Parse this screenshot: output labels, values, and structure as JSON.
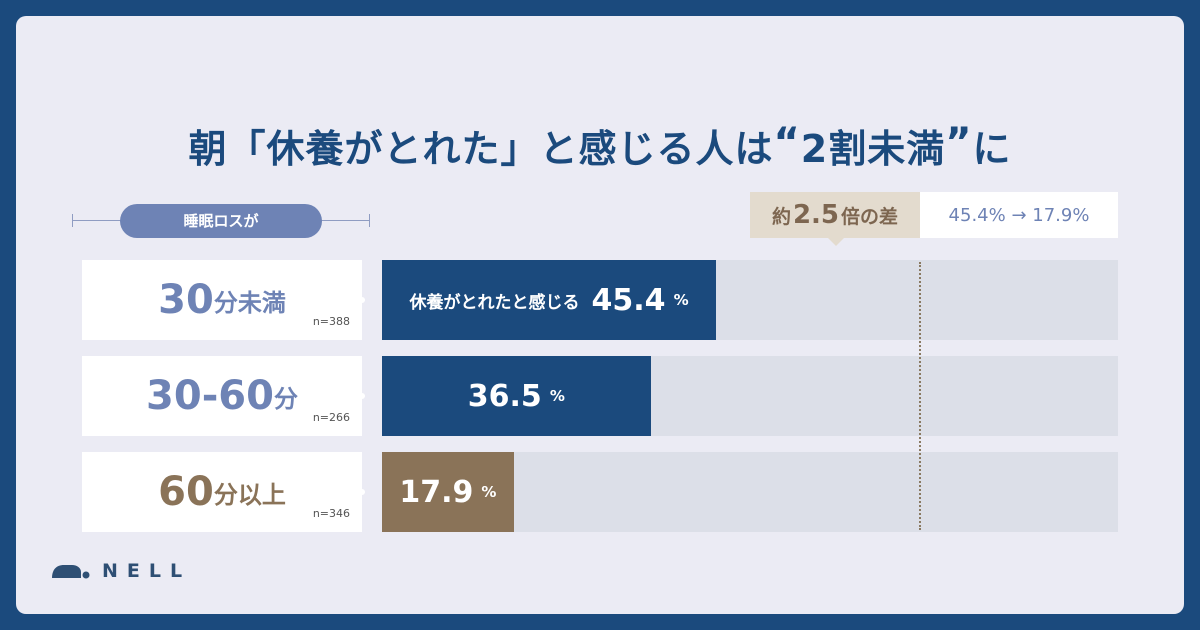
{
  "title": {
    "pre": "朝「休養がとれた」と感じる人は",
    "open_quote": "“",
    "highlight": "2割未満",
    "close_quote": "”",
    "post": "に"
  },
  "legend": {
    "label": "睡眠ロスが"
  },
  "callout": {
    "prefix": "約",
    "value": "2.5",
    "suffix": "倍の差",
    "comparison": "45.4% → 17.9%"
  },
  "bar_prefix": "休養がとれたと感じる",
  "percent_sign": "%",
  "brand": "NELL",
  "colors": {
    "navy": "#1b4a7d",
    "brown": "#8a7358",
    "track": "#dcdfe8",
    "accent_blue": "#6e83b5"
  },
  "chart_data": {
    "type": "bar",
    "orientation": "horizontal",
    "categories": [
      "30分未満",
      "30-60分",
      "60分以上"
    ],
    "category_parts": [
      {
        "num": "30",
        "unit": "分未満"
      },
      {
        "num": "30-60",
        "unit": "分"
      },
      {
        "num": "60",
        "unit": "分以上"
      }
    ],
    "sample_sizes": [
      "n=388",
      "n=266",
      "n=346"
    ],
    "values": [
      45.4,
      36.5,
      17.9
    ],
    "value_labels": [
      "45.4",
      "36.5",
      "17.9"
    ],
    "bar_colors": [
      "#1b4a7d",
      "#1b4a7d",
      "#8a7358"
    ],
    "label_colors": [
      "#6e83b5",
      "#6e83b5",
      "#8a7358"
    ],
    "xlim": [
      0,
      100
    ],
    "reference_line": 73
  }
}
